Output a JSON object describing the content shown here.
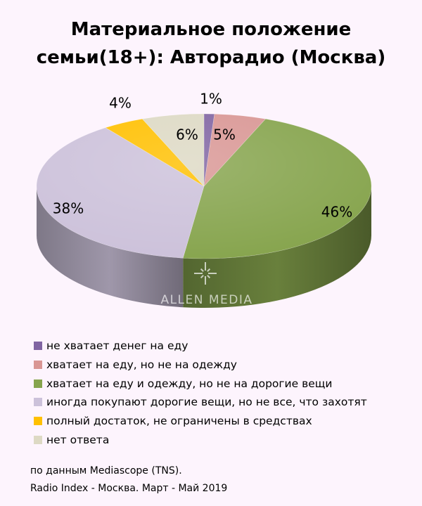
{
  "chart_data": {
    "type": "pie",
    "title_line1": "Материальное положение",
    "title_line2": "семьи(18+): Авторадио (Москва)",
    "slices": [
      {
        "label": "не хватает денег на еду",
        "value": 1,
        "value_label": "1%",
        "color": "#8064A2"
      },
      {
        "label": "хватает на еду, но не на одежду",
        "value": 5,
        "value_label": "5%",
        "color": "#D99694"
      },
      {
        "label": "хватает на еду и одежду, но не на дорогие вещи",
        "value": 46,
        "value_label": "46%",
        "color": "#86A44D"
      },
      {
        "label": "иногда покупают дорогие вещи, но не все, что захотят",
        "value": 38,
        "value_label": "38%",
        "color": "#CCC1DA"
      },
      {
        "label": "полный достаток, не ограничены в средствах",
        "value": 4,
        "value_label": "4%",
        "color": "#FFC000"
      },
      {
        "label": "нет ответа",
        "value": 6,
        "value_label": "6%",
        "color": "#DDD9C4"
      }
    ],
    "legend_position": "bottom"
  },
  "watermark": "ALLEN MEDIA",
  "source_line1": "по данным Mediascope (TNS).",
  "source_line2": "Radio Index - Москва. Март - Май 2019"
}
